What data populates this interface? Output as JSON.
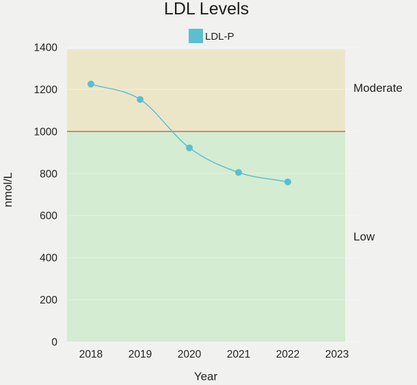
{
  "chart_data": {
    "type": "line",
    "title": "LDL Levels",
    "xlabel": "Year",
    "ylabel": "nmol/L",
    "categories": [
      "2018",
      "2019",
      "2020",
      "2021",
      "2022",
      "2023"
    ],
    "series": [
      {
        "name": "LDL-P",
        "values": [
          1225,
          1152,
          922,
          805,
          760,
          null
        ],
        "color": "#5bbfcf"
      }
    ],
    "ylim": [
      0,
      1400
    ],
    "yticks": [
      0,
      200,
      400,
      600,
      800,
      1000,
      1200,
      1400
    ],
    "threshold": {
      "value": 1000,
      "color": "#c8794a"
    },
    "bands": [
      {
        "label": "Moderate",
        "from": 1000,
        "to": 1390,
        "color": "#ece6c9"
      },
      {
        "label": "Low",
        "from": 0,
        "to": 1000,
        "color": "#d4ecd2"
      }
    ],
    "grid": true,
    "legend_position": "top-center",
    "line_style": "smooth"
  }
}
